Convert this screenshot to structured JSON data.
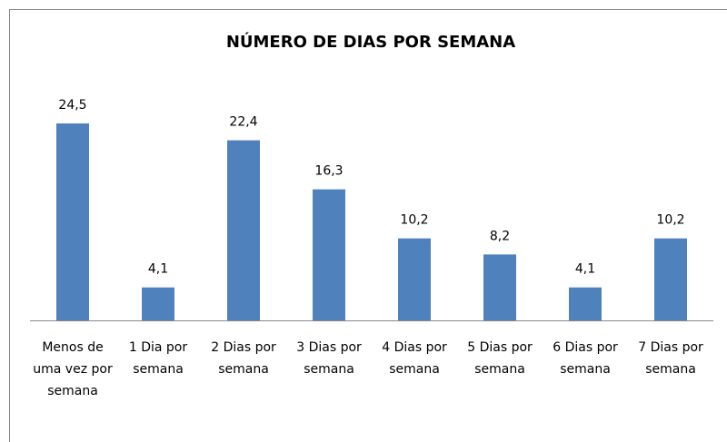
{
  "chart_data": {
    "type": "bar",
    "title": "NÚMERO DE DIAS POR SEMANA",
    "categories": [
      "Menos de uma vez por semana",
      "1 Dia por semana",
      "2 Dias por semana",
      "3 Dias por semana",
      "4 Dias por semana",
      "5 Dias por semana",
      "6 Dias por semana",
      "7 Dias por semana"
    ],
    "values": [
      24.5,
      4.1,
      22.4,
      16.3,
      10.2,
      8.2,
      4.1,
      10.2
    ],
    "value_labels": [
      "24,5",
      "4,1",
      "22,4",
      "16,3",
      "10,2",
      "8,2",
      "4,1",
      "10,2"
    ],
    "color": "#4f81bd"
  }
}
